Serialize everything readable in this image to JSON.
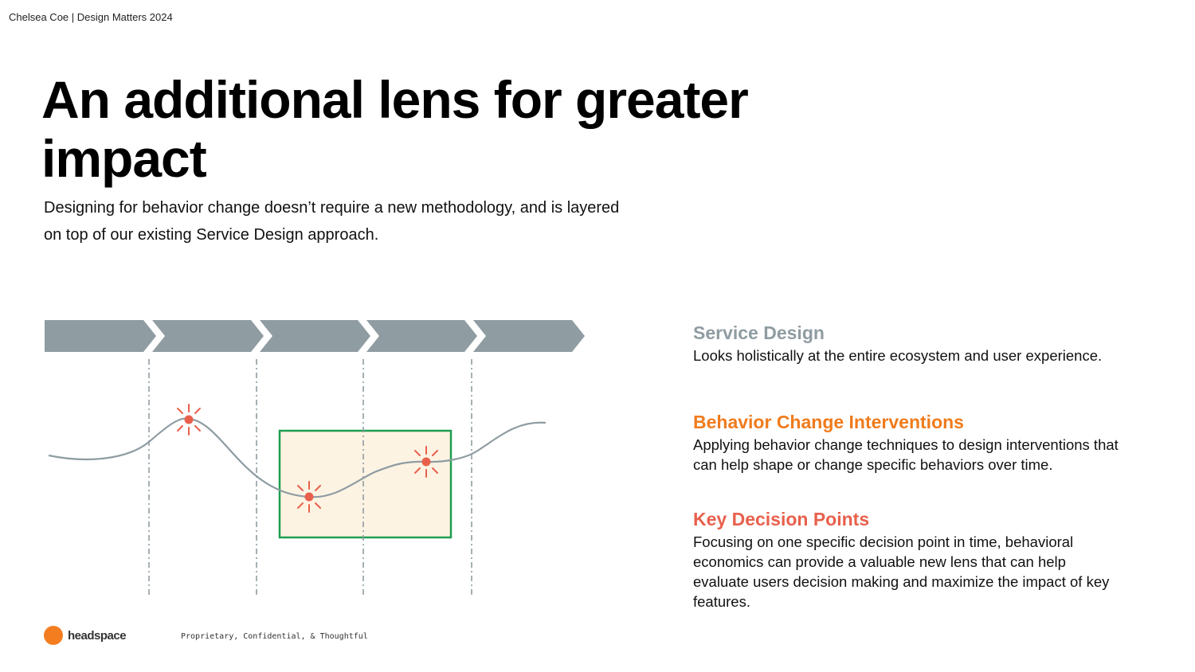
{
  "header": {
    "credit": "Chelsea Coe | Design Matters 2024"
  },
  "slide": {
    "title": "An additional lens for greater impact",
    "subtitle": "Designing for behavior change doesn’t require a new methodology, and is layered on top of our existing Service Design approach."
  },
  "diagram": {
    "stages": 5,
    "colors": {
      "arrow": "#8f9ca2",
      "curve": "#8f9ca2",
      "divider": "#8f9ca2",
      "focus_fill": "#fdf3e3",
      "focus_border": "#1e9e50",
      "decision_point": "#e8604c"
    },
    "decision_points": 3
  },
  "legend": {
    "items": [
      {
        "heading": "Service Design",
        "color": "#8f9ca2",
        "description": "Looks holistically at the entire ecosystem and user experience."
      },
      {
        "heading": "Behavior Change Interventions",
        "color": "#f07b1c",
        "description": "Applying behavior change techniques to design interventions that can help shape or change specific behaviors over time."
      },
      {
        "heading": "Key Decision Points",
        "color": "#e8604c",
        "description": "Focusing on one specific decision point in time, behavioral economics can provide a valuable new lens that can help evaluate users decision making and maximize the impact of key features."
      }
    ]
  },
  "footer": {
    "brand": "headspace",
    "brand_color": "#f47d20",
    "note": "Proprietary, Confidential, & Thoughtful"
  }
}
